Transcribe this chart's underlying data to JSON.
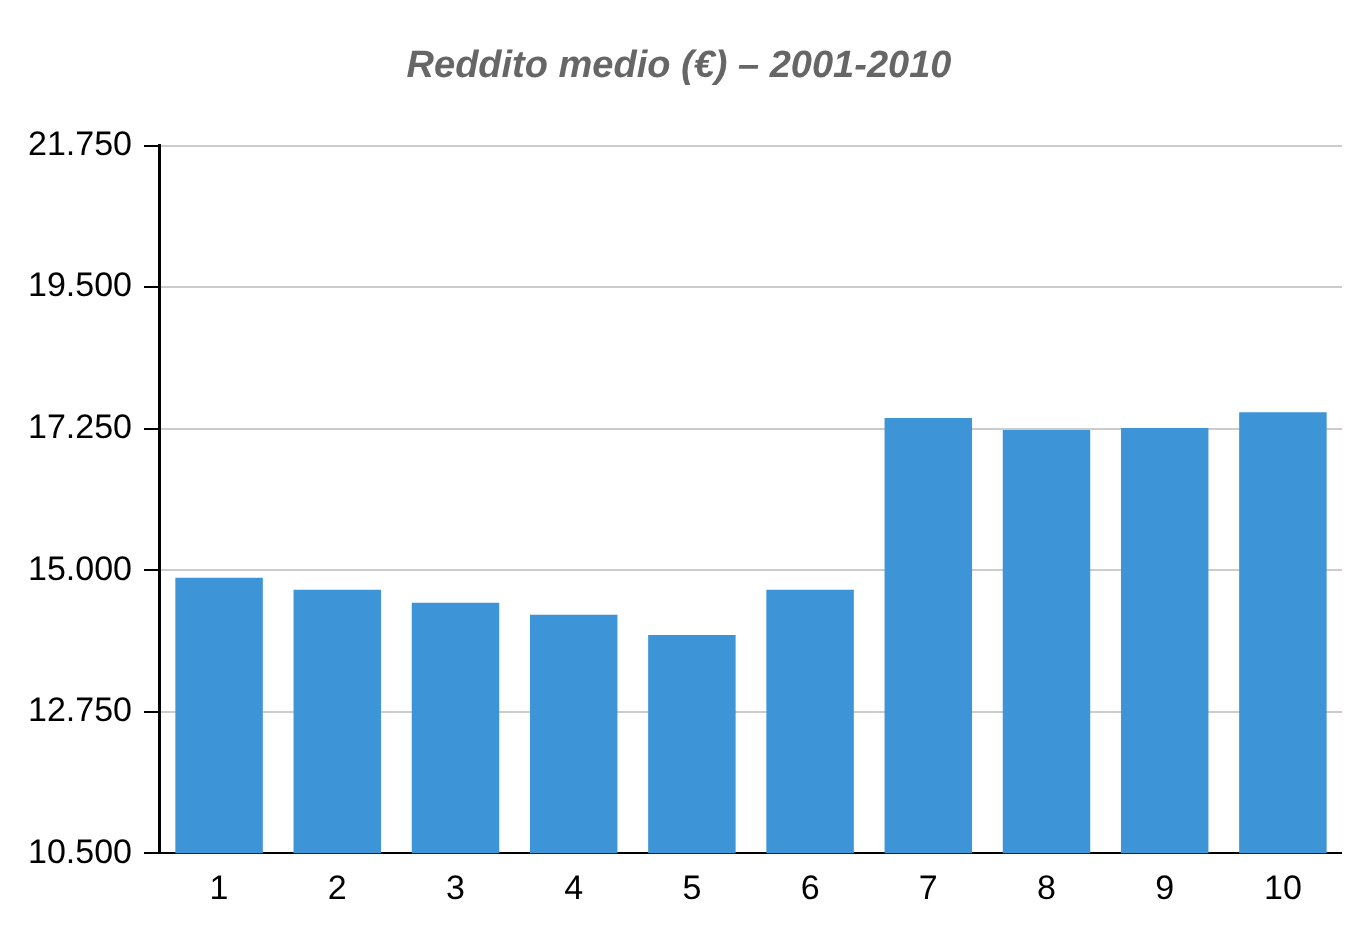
{
  "chart_data": {
    "type": "bar",
    "title": "Reddito medio (€) – 2001-2010",
    "categories": [
      "1",
      "2",
      "3",
      "4",
      "5",
      "6",
      "7",
      "8",
      "9",
      "10"
    ],
    "values": [
      14880,
      14690,
      14480,
      14290,
      13970,
      14690,
      17420,
      17230,
      17260,
      17510
    ],
    "color": "#3d94d6",
    "ylim": [
      10500,
      21750
    ],
    "yticks": [
      {
        "value": 10500,
        "label": "10.500"
      },
      {
        "value": 12750,
        "label": "12.750"
      },
      {
        "value": 15000,
        "label": "15.000"
      },
      {
        "value": 17250,
        "label": "17.250"
      },
      {
        "value": 19500,
        "label": "19.500"
      },
      {
        "value": 21750,
        "label": "21.750"
      }
    ],
    "grid": "y"
  }
}
